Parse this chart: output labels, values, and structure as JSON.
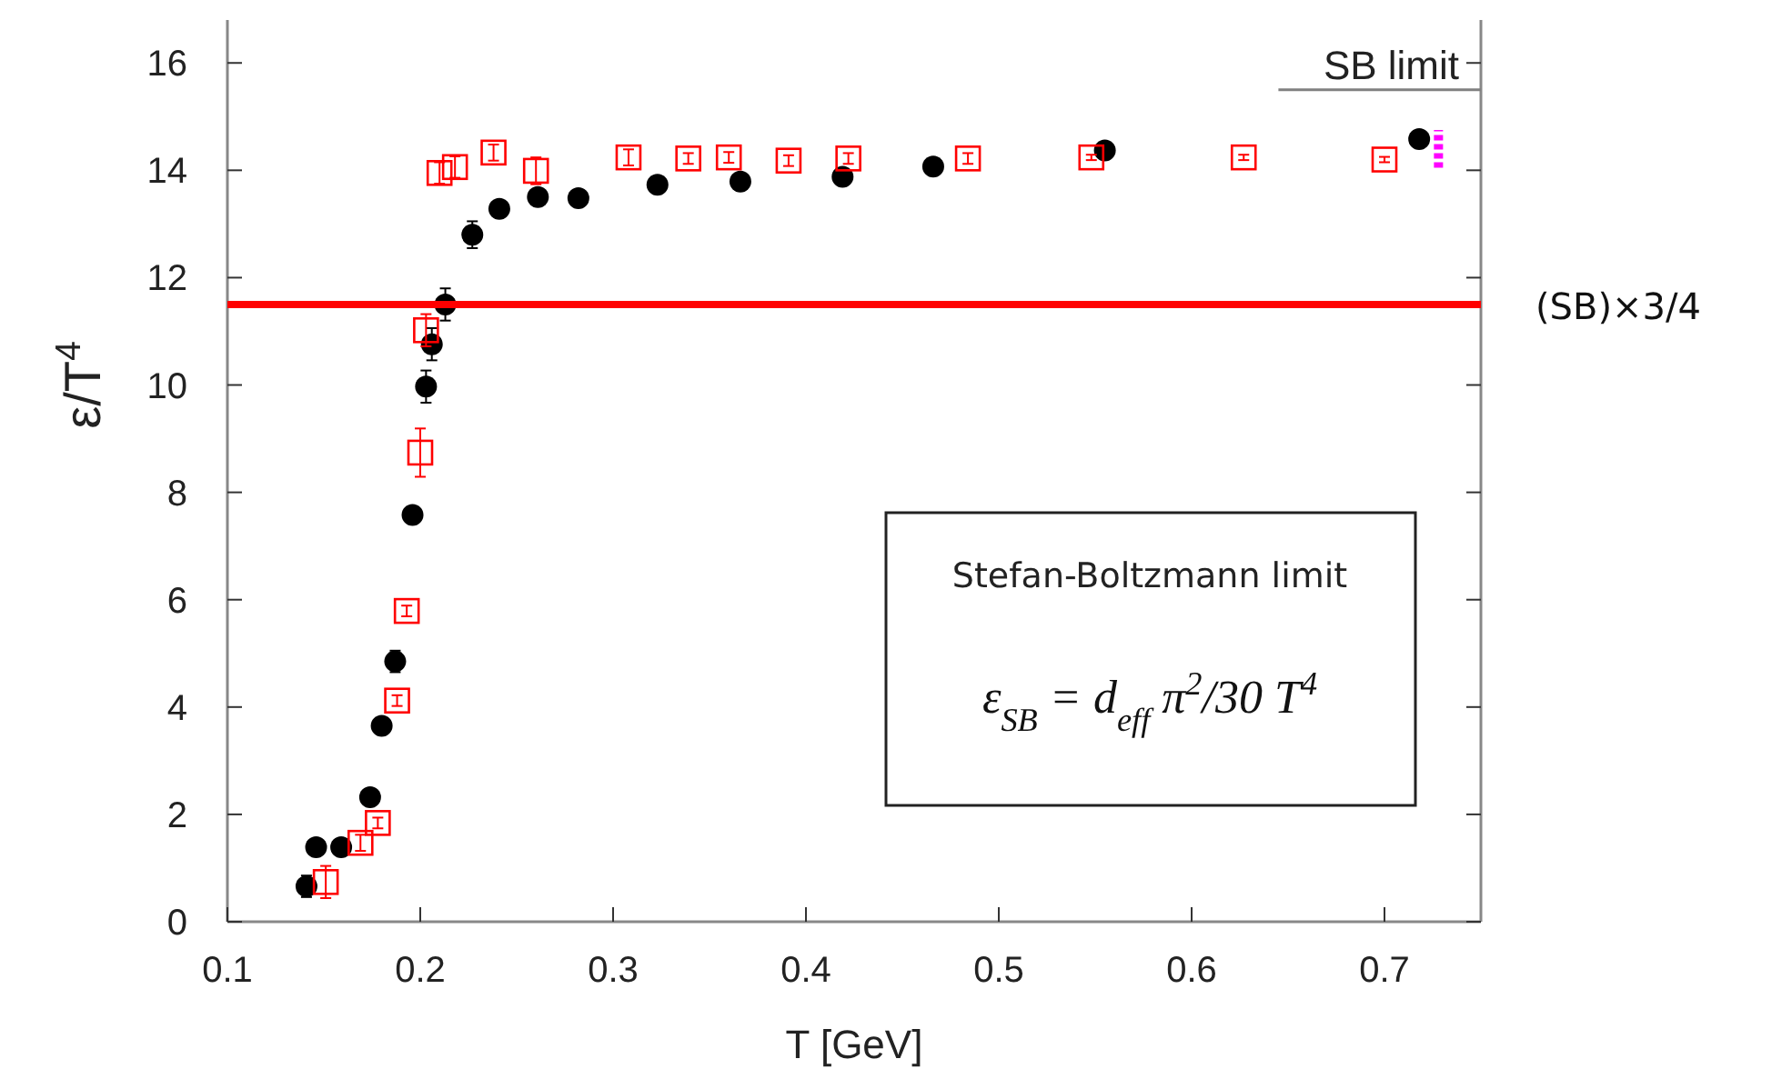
{
  "chart_data": {
    "type": "scatter",
    "xlabel": "T [GeV]",
    "ylabel": "ε/T$^{4}$",
    "xlim": [
      0.1,
      0.75
    ],
    "ylim": [
      0,
      16.8
    ],
    "xticks": [
      0.1,
      0.2,
      0.3,
      0.4,
      0.5,
      0.6,
      0.7
    ],
    "yticks": [
      0,
      2,
      4,
      6,
      8,
      10,
      12,
      14,
      16
    ],
    "grid": false,
    "series": [
      {
        "color": "#000000",
        "marker": "circle",
        "x": [
          0.141,
          0.146,
          0.159,
          0.174,
          0.18,
          0.187,
          0.196,
          0.203,
          0.206,
          0.213,
          0.227,
          0.241,
          0.261,
          0.282,
          0.323,
          0.366,
          0.419,
          0.466,
          0.555,
          0.718
        ],
        "values": [
          0.66,
          1.39,
          1.39,
          2.32,
          3.65,
          4.85,
          7.58,
          9.97,
          10.76,
          11.5,
          12.8,
          13.28,
          13.5,
          13.48,
          13.73,
          13.79,
          13.88,
          14.07,
          14.37,
          14.58
        ],
        "errors": [
          0.2,
          0.15,
          0.1,
          0.15,
          0.1,
          0.2,
          0.15,
          0.3,
          0.3,
          0.3,
          0.25,
          0.15,
          0.15,
          0.1,
          0.1,
          0.1,
          0.1,
          0.1,
          0.1,
          0.1
        ]
      },
      {
        "color": "#ff0000",
        "marker": "square",
        "x": [
          0.151,
          0.169,
          0.178,
          0.188,
          0.193,
          0.2,
          0.203,
          0.21,
          0.218,
          0.238,
          0.26,
          0.308,
          0.339,
          0.36,
          0.391,
          0.422,
          0.484,
          0.548,
          0.627,
          0.7
        ],
        "values": [
          0.74,
          1.47,
          1.84,
          4.12,
          5.79,
          8.74,
          11.02,
          13.95,
          14.06,
          14.33,
          13.99,
          14.24,
          14.22,
          14.24,
          14.18,
          14.22,
          14.22,
          14.24,
          14.24,
          14.2
        ],
        "errors": [
          0.3,
          0.15,
          0.1,
          0.1,
          0.1,
          0.45,
          0.3,
          0.2,
          0.2,
          0.15,
          0.25,
          0.15,
          0.1,
          0.1,
          0.1,
          0.1,
          0.1,
          0.05,
          0.05,
          0.05
        ]
      },
      {
        "type": "line",
        "color": "#ff00ff",
        "line_style": "dotted",
        "x": [
          0.728,
          0.728
        ],
        "values": [
          14.05,
          14.75
        ]
      },
      {
        "type": "line",
        "name": "SB limit",
        "color": "#808080",
        "line_style": "solid",
        "x": [
          0.645,
          0.75
        ],
        "values": [
          15.5,
          15.5
        ]
      }
    ],
    "ref_lines": [
      {
        "axis": "y",
        "value": 11.5,
        "label": "(SB)×3/4",
        "color": "#ff0000"
      }
    ],
    "annotations": [
      "Stefan-Boltzmann limit",
      "ε$_{SB}$ = d$_{eff}$ π$^{2}$/30 T$^{4}$"
    ]
  }
}
